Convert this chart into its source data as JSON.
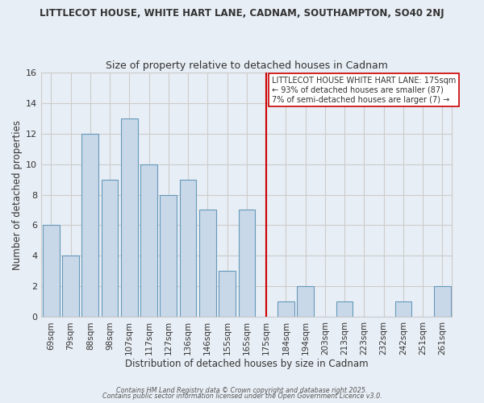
{
  "title": "LITTLECOT HOUSE, WHITE HART LANE, CADNAM, SOUTHAMPTON, SO40 2NJ",
  "subtitle": "Size of property relative to detached houses in Cadnam",
  "xlabel": "Distribution of detached houses by size in Cadnam",
  "ylabel": "Number of detached properties",
  "bar_labels": [
    "69sqm",
    "79sqm",
    "88sqm",
    "98sqm",
    "107sqm",
    "117sqm",
    "127sqm",
    "136sqm",
    "146sqm",
    "155sqm",
    "165sqm",
    "175sqm",
    "184sqm",
    "194sqm",
    "203sqm",
    "213sqm",
    "223sqm",
    "232sqm",
    "242sqm",
    "251sqm",
    "261sqm"
  ],
  "bar_values": [
    6,
    4,
    12,
    9,
    13,
    10,
    8,
    9,
    7,
    3,
    7,
    0,
    1,
    2,
    0,
    1,
    0,
    0,
    1,
    0,
    2
  ],
  "bar_color": "#c8d8e8",
  "bar_edgecolor": "#6699bb",
  "vline_x_index": 11,
  "vline_color": "#cc0000",
  "annotation_title": "LITTLECOT HOUSE WHITE HART LANE: 175sqm",
  "annotation_line1": "← 93% of detached houses are smaller (87)",
  "annotation_line2": "7% of semi-detached houses are larger (7) →",
  "annotation_box_color": "#ffffff",
  "annotation_box_edgecolor": "#cc0000",
  "ylim": [
    0,
    16
  ],
  "yticks": [
    0,
    2,
    4,
    6,
    8,
    10,
    12,
    14,
    16
  ],
  "bg_color": "#e8eef5",
  "grid_color": "#cccccc",
  "footer1": "Contains HM Land Registry data © Crown copyright and database right 2025.",
  "footer2": "Contains public sector information licensed under the Open Government Licence v3.0."
}
